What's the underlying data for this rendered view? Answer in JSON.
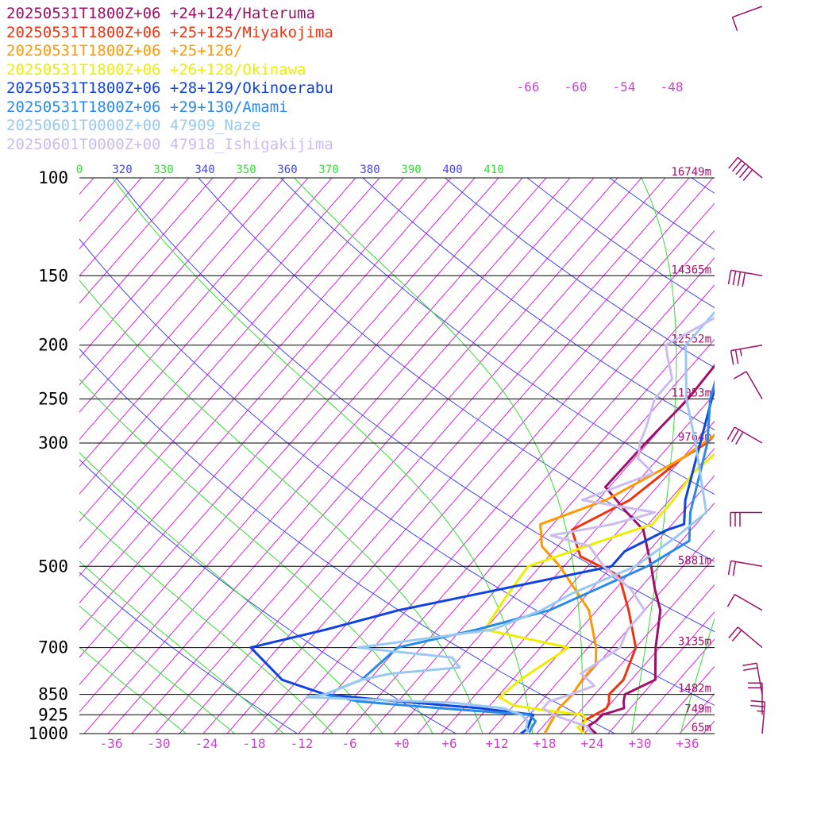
{
  "chart_data": {
    "type": "line",
    "title": "",
    "xlabel": "",
    "ylabel": "",
    "xlim": [
      -42,
      38
    ],
    "pressure_range_hPa": [
      100,
      1000
    ],
    "pressure_labels": [
      "100",
      "150",
      "200",
      "250",
      "300",
      "500",
      "700",
      "850",
      "925",
      "1000"
    ],
    "height_labels": [
      {
        "p": 100,
        "label": "16749m"
      },
      {
        "p": 150,
        "label": "14365m"
      },
      {
        "p": 200,
        "label": "12552m"
      },
      {
        "p": 250,
        "label": "11053m"
      },
      {
        "p": 300,
        "label": "9764m"
      },
      {
        "p": 500,
        "label": "5881m"
      },
      {
        "p": 700,
        "label": "3135m"
      },
      {
        "p": 850,
        "label": "1482m"
      },
      {
        "p": 925,
        "label": "749m"
      },
      {
        "p": 1000,
        "label": "65m"
      }
    ],
    "temperature_ticks": [
      "-36",
      "-30",
      "-24",
      "-18",
      "-12",
      "-6",
      "+0",
      "+6",
      "+12",
      "+18",
      "+24",
      "+30",
      "+36"
    ],
    "upper_isotherm_labels": [
      "-66",
      "-60",
      "-54",
      "-48"
    ],
    "theta_labels": [
      {
        "text": "0",
        "color": "#33dd33"
      },
      {
        "text": "320",
        "color": "#4444ee"
      },
      {
        "text": "330",
        "color": "#33dd33"
      },
      {
        "text": "340",
        "color": "#4444ee"
      },
      {
        "text": "350",
        "color": "#33dd33"
      },
      {
        "text": "360",
        "color": "#4444ee"
      },
      {
        "text": "370",
        "color": "#33dd33"
      },
      {
        "text": "380",
        "color": "#4444ee"
      },
      {
        "text": "390",
        "color": "#33dd33"
      },
      {
        "text": "400",
        "color": "#4444ee"
      },
      {
        "text": "410",
        "color": "#33dd33"
      }
    ],
    "colors": {
      "isotherm": "#dd22dd",
      "dry_adiabat": "#4444ee",
      "moist_adiabat": "#33dd33",
      "isobar": "#000000",
      "wind_barb": "#9e1068",
      "tick_label": "#cc44cc",
      "height_label": "#9e1068"
    },
    "series": [
      {
        "name": "20250531T1800Z+06 +24+124/Hateruma",
        "color": "#9e1068",
        "points": [
          [
            1000,
            24.5
          ],
          [
            970,
            22.6
          ],
          [
            950,
            23.1
          ],
          [
            925,
            23.2
          ],
          [
            900,
            25.2
          ],
          [
            875,
            24.4
          ],
          [
            850,
            23.8
          ],
          [
            800,
            26
          ],
          [
            750,
            24.3
          ],
          [
            700,
            22.5
          ],
          [
            600,
            19
          ],
          [
            550,
            16
          ],
          [
            500,
            13
          ],
          [
            430,
            8
          ],
          [
            400,
            4
          ],
          [
            360,
            -1.5
          ],
          [
            300,
            -1.3
          ],
          [
            250,
            -0.8
          ],
          [
            200,
            -1.3
          ],
          [
            175,
            -2
          ],
          [
            150,
            -1.4
          ],
          [
            125,
            -2.5
          ],
          [
            110,
            -2.8
          ],
          [
            100,
            -2
          ],
          [
            90,
            1
          ],
          [
            70,
            6
          ],
          [
            50,
            13
          ],
          [
            40,
            19
          ]
        ]
      },
      {
        "name": "20250531T1800Z+06 +25+125/Miyakojima",
        "color": "#ee3311",
        "points": [
          [
            1000,
            22.8
          ],
          [
            950,
            21.5
          ],
          [
            900,
            23
          ],
          [
            880,
            22.7
          ],
          [
            850,
            21.8
          ],
          [
            800,
            22
          ],
          [
            700,
            20
          ],
          [
            600,
            15
          ],
          [
            520,
            10
          ],
          [
            480,
            3
          ],
          [
            430,
            -1
          ],
          [
            380,
            3
          ],
          [
            320,
            5
          ],
          [
            300,
            6.4
          ],
          [
            250,
            7
          ],
          [
            200,
            0
          ],
          [
            170,
            -1
          ],
          [
            150,
            -1.5
          ],
          [
            120,
            -2.2
          ],
          [
            105,
            -1.8
          ],
          [
            100,
            -0.5
          ],
          [
            90,
            4
          ],
          [
            70,
            10
          ],
          [
            50,
            20
          ],
          [
            40,
            28
          ]
        ]
      },
      {
        "name": "20250531T1800Z+06 +25+126/",
        "color": "#ff9900",
        "points": [
          [
            1000,
            18
          ],
          [
            950,
            17.5
          ],
          [
            900,
            17
          ],
          [
            850,
            17.2
          ],
          [
            800,
            16.8
          ],
          [
            750,
            16.8
          ],
          [
            700,
            15
          ],
          [
            600,
            10
          ],
          [
            500,
            1.5
          ],
          [
            460,
            -3
          ],
          [
            420,
            -5.6
          ],
          [
            380,
            0
          ],
          [
            320,
            5
          ],
          [
            300,
            6
          ],
          [
            250,
            9
          ],
          [
            200,
            2
          ],
          [
            170,
            -1.5
          ],
          [
            150,
            -2
          ],
          [
            120,
            -1.8
          ],
          [
            100,
            -1.2
          ],
          [
            90,
            3
          ],
          [
            70,
            9
          ],
          [
            50,
            18
          ],
          [
            40,
            26
          ]
        ]
      },
      {
        "name": "20250531T1800Z+06 +26+128/Okinawa",
        "color": "#eeee00",
        "points": [
          [
            1000,
            23
          ],
          [
            975,
            21.5
          ],
          [
            950,
            21.8
          ],
          [
            925,
            20.8
          ],
          [
            910,
            16
          ],
          [
            890,
            11
          ],
          [
            860,
            8.3
          ],
          [
            800,
            9
          ],
          [
            720,
            11
          ],
          [
            700,
            11.5
          ],
          [
            650,
            -1
          ],
          [
            570,
            -1.9
          ],
          [
            500,
            -2.5
          ],
          [
            450,
            4
          ],
          [
            420,
            8.5
          ],
          [
            380,
            8.5
          ],
          [
            340,
            8
          ],
          [
            300,
            9
          ],
          [
            250,
            12
          ],
          [
            200,
            4.5
          ],
          [
            170,
            0.2
          ],
          [
            150,
            -0.8
          ],
          [
            120,
            -0.9
          ],
          [
            100,
            -0.7
          ],
          [
            90,
            3
          ],
          [
            70,
            9
          ],
          [
            50,
            18
          ],
          [
            40,
            26
          ]
        ]
      },
      {
        "name": "20250531T1800Z+06 +28+129/Okinoerabu",
        "color": "#1144dd",
        "points": [
          [
            1000,
            15
          ],
          [
            980,
            15.3
          ],
          [
            950,
            14.8
          ],
          [
            925,
            14.5
          ],
          [
            900,
            7
          ],
          [
            870,
            -6
          ],
          [
            850,
            -14
          ],
          [
            800,
            -21
          ],
          [
            700,
            -28.5
          ],
          [
            650,
            -21
          ],
          [
            600,
            -14
          ],
          [
            500,
            8
          ],
          [
            470,
            8
          ],
          [
            430,
            11
          ],
          [
            420,
            12.5
          ],
          [
            380,
            10
          ],
          [
            300,
            5.6
          ],
          [
            250,
            2.2
          ],
          [
            200,
            -1.7
          ],
          [
            170,
            -2.5
          ],
          [
            150,
            -1.6
          ],
          [
            120,
            -2.6
          ],
          [
            100,
            0.5
          ],
          [
            90,
            1
          ],
          [
            70,
            8
          ],
          [
            50,
            25
          ],
          [
            40,
            30
          ]
        ]
      },
      {
        "name": "20250531T1800Z+06 +29+130/Amami",
        "color": "#2a8ae8",
        "points": [
          [
            1000,
            16
          ],
          [
            975,
            15.7
          ],
          [
            950,
            15.5
          ],
          [
            925,
            14
          ],
          [
            900,
            2
          ],
          [
            875,
            -9
          ],
          [
            850,
            -14
          ],
          [
            800,
            -11
          ],
          [
            700,
            -10
          ],
          [
            650,
            -2
          ],
          [
            600,
            5
          ],
          [
            500,
            12.5
          ],
          [
            450,
            15
          ],
          [
            400,
            12
          ],
          [
            300,
            6.5
          ],
          [
            250,
            2
          ],
          [
            200,
            -2
          ],
          [
            170,
            -3
          ],
          [
            150,
            -2
          ],
          [
            125,
            -2.2
          ],
          [
            105,
            1.5
          ],
          [
            100,
            2.8
          ],
          [
            90,
            3.2
          ],
          [
            70,
            9
          ],
          [
            50,
            22
          ],
          [
            40,
            30
          ]
        ]
      },
      {
        "name": "20250601T0000Z+00 47909_Naze",
        "color": "#99c8f0",
        "points": [
          [
            1000,
            16
          ],
          [
            975,
            15
          ],
          [
            950,
            14.5
          ],
          [
            925,
            13
          ],
          [
            900,
            10
          ],
          [
            880,
            3
          ],
          [
            860,
            -16
          ],
          [
            850,
            -14
          ],
          [
            800,
            -11
          ],
          [
            780,
            -8
          ],
          [
            760,
            0
          ],
          [
            730,
            -2
          ],
          [
            700,
            -15
          ],
          [
            650,
            0
          ],
          [
            600,
            4
          ],
          [
            560,
            6
          ],
          [
            500,
            11
          ],
          [
            440,
            13
          ],
          [
            400,
            14
          ],
          [
            300,
            5
          ],
          [
            250,
            -1
          ],
          [
            200,
            -7
          ],
          [
            170,
            -7
          ],
          [
            150,
            -10.4
          ],
          [
            125,
            -8.3
          ],
          [
            110,
            -5.8
          ],
          [
            100,
            -6
          ]
        ]
      },
      {
        "name": "20250601T0000Z+00 47918_Ishigakijima",
        "color": "#cbbcf0",
        "points": [
          [
            1000,
            24
          ],
          [
            970,
            22.5
          ],
          [
            950,
            20
          ],
          [
            925,
            17
          ],
          [
            900,
            15
          ],
          [
            875,
            15
          ],
          [
            850,
            17
          ],
          [
            820,
            19
          ],
          [
            780,
            16
          ],
          [
            700,
            18
          ],
          [
            650,
            17
          ],
          [
            600,
            17
          ],
          [
            550,
            13
          ],
          [
            500,
            7
          ],
          [
            460,
            3
          ],
          [
            440,
            -3
          ],
          [
            420,
            3.5
          ],
          [
            400,
            7.5
          ],
          [
            380,
            -3
          ],
          [
            340,
            3
          ],
          [
            320,
            -0.5
          ],
          [
            300,
            -2
          ],
          [
            280,
            -3
          ],
          [
            250,
            -5
          ],
          [
            230,
            -5
          ],
          [
            210,
            -8
          ],
          [
            200,
            -9.5
          ],
          [
            170,
            -5
          ],
          [
            150,
            -3
          ],
          [
            130,
            -4
          ],
          [
            115,
            -3
          ],
          [
            100,
            3
          ]
        ]
      }
    ],
    "wind_barbs": [
      {
        "p": 90,
        "dir": 250,
        "speed_kt": 10
      },
      {
        "p": 100,
        "dir": 310,
        "speed_kt": 50
      },
      {
        "p": 150,
        "dir": 280,
        "speed_kt": 40
      },
      {
        "p": 200,
        "dir": 260,
        "speed_kt": 25
      },
      {
        "p": 250,
        "dir": 330,
        "speed_kt": 10
      },
      {
        "p": 300,
        "dir": 300,
        "speed_kt": 30
      },
      {
        "p": 400,
        "dir": 270,
        "speed_kt": 30
      },
      {
        "p": 500,
        "dir": 280,
        "speed_kt": 20
      },
      {
        "p": 600,
        "dir": 300,
        "speed_kt": 10
      },
      {
        "p": 700,
        "dir": 310,
        "speed_kt": 20
      },
      {
        "p": 850,
        "dir": 350,
        "speed_kt": 20
      },
      {
        "p": 925,
        "dir": 0,
        "speed_kt": 20
      },
      {
        "p": 1000,
        "dir": 5,
        "speed_kt": 25
      }
    ]
  }
}
